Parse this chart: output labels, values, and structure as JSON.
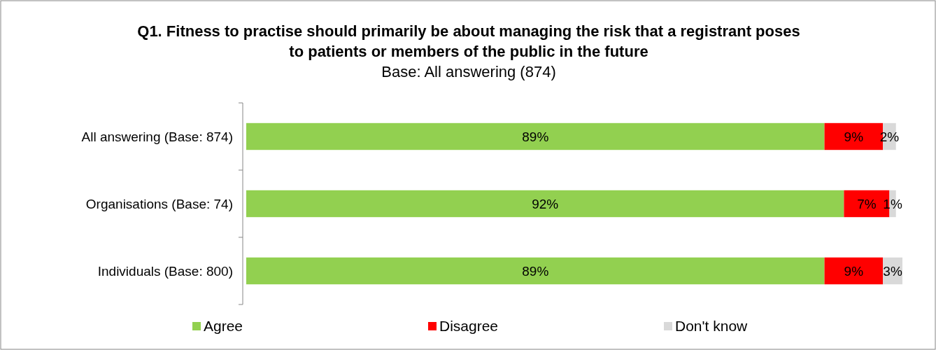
{
  "chart_data": {
    "type": "bar",
    "orientation": "horizontal",
    "stacked": true,
    "title": "Q1. Fitness to practise should primarily be about managing the risk that a registrant poses to patients or members of the public in the future",
    "subtitle": "Base: All answering (874)",
    "categories": [
      "All answering (Base: 874)",
      "Organisations (Base: 74)",
      "Individuals (Base: 800)"
    ],
    "series": [
      {
        "name": "Agree",
        "color": "#92d050",
        "values": [
          89,
          92,
          89
        ],
        "value_labels": [
          "89%",
          "92%",
          "89%"
        ]
      },
      {
        "name": "Disagree",
        "color": "#ff0000",
        "values": [
          9,
          7,
          9
        ],
        "value_labels": [
          "9%",
          "7%",
          "9%"
        ]
      },
      {
        "name": "Don't know",
        "color": "#d9d9d9",
        "values": [
          2,
          1,
          3
        ],
        "value_labels": [
          "2%",
          "1%",
          "3%"
        ]
      }
    ],
    "legend": "bottom",
    "grid": false
  }
}
